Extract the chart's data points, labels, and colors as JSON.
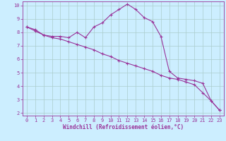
{
  "line1_x": [
    0,
    1,
    2,
    3,
    4,
    5,
    6,
    7,
    8,
    9,
    10,
    11,
    12,
    13,
    14,
    15,
    16,
    17,
    18,
    19,
    20,
    21,
    22,
    23
  ],
  "line1_y": [
    8.4,
    8.2,
    7.8,
    7.7,
    7.7,
    7.6,
    8.0,
    7.6,
    8.4,
    8.7,
    9.3,
    9.7,
    10.1,
    9.7,
    9.1,
    8.8,
    7.7,
    5.1,
    4.6,
    4.5,
    4.4,
    4.2,
    2.9,
    2.2
  ],
  "line2_x": [
    0,
    1,
    2,
    3,
    4,
    5,
    6,
    7,
    8,
    9,
    10,
    11,
    12,
    13,
    14,
    15,
    16,
    17,
    18,
    19,
    20,
    21,
    22,
    23
  ],
  "line2_y": [
    8.4,
    8.1,
    7.8,
    7.6,
    7.5,
    7.3,
    7.1,
    6.9,
    6.7,
    6.4,
    6.2,
    5.9,
    5.7,
    5.5,
    5.3,
    5.1,
    4.8,
    4.6,
    4.5,
    4.3,
    4.1,
    3.5,
    2.9,
    2.2
  ],
  "line_color": "#993399",
  "bg_color": "#cceeff",
  "grid_color": "#aacccc",
  "xlabel": "Windchill (Refroidissement éolien,°C)",
  "xlim_min": -0.5,
  "xlim_max": 23.5,
  "ylim_min": 1.8,
  "ylim_max": 10.3,
  "xticks": [
    0,
    1,
    2,
    3,
    4,
    5,
    6,
    7,
    8,
    9,
    10,
    11,
    12,
    13,
    14,
    15,
    16,
    17,
    18,
    19,
    20,
    21,
    22,
    23
  ],
  "yticks": [
    2,
    3,
    4,
    5,
    6,
    7,
    8,
    9,
    10
  ],
  "marker": "+",
  "markersize": 3,
  "linewidth": 0.8,
  "xlabel_fontsize": 5.5,
  "tick_fontsize": 5.0
}
